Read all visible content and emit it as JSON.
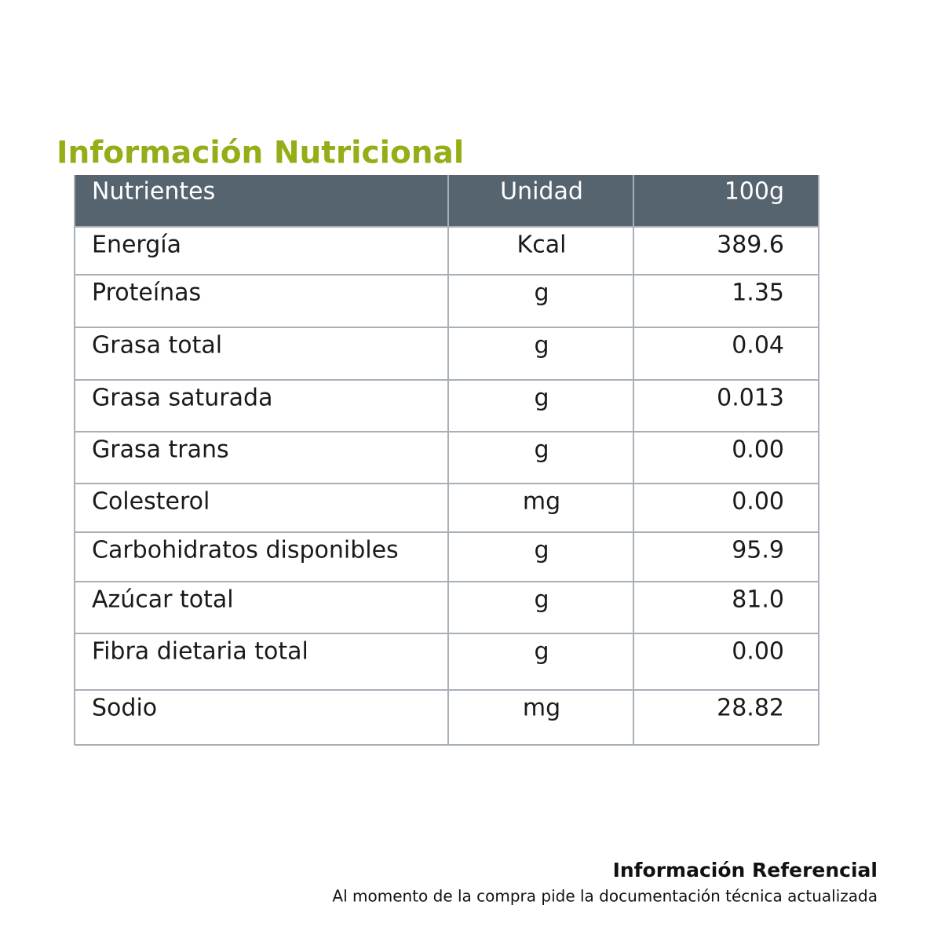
{
  "header": {
    "title": "Información Nutricional"
  },
  "table": {
    "columns": [
      "Nutrientes",
      "Unidad",
      "100g"
    ],
    "rows": [
      [
        "Energía",
        "Kcal",
        "389.6"
      ],
      [
        "Proteínas",
        "g",
        "1.35"
      ],
      [
        "Grasa total",
        "g",
        "0.04"
      ],
      [
        "Grasa saturada",
        "g",
        "0.013"
      ],
      [
        "Grasa trans",
        "g",
        "0.00"
      ],
      [
        "Colesterol",
        "mg",
        "0.00"
      ],
      [
        "Carbohidratos disponibles",
        "g",
        "95.9"
      ],
      [
        "Azúcar total",
        "g",
        "81.0"
      ],
      [
        "Fibra dietaria total",
        "g",
        "0.00"
      ],
      [
        "Sodio",
        "mg",
        "28.82"
      ]
    ]
  },
  "footer": {
    "title": "Información Referencial",
    "note": "Al momento de la compra pide la documentación técnica actualizada"
  }
}
